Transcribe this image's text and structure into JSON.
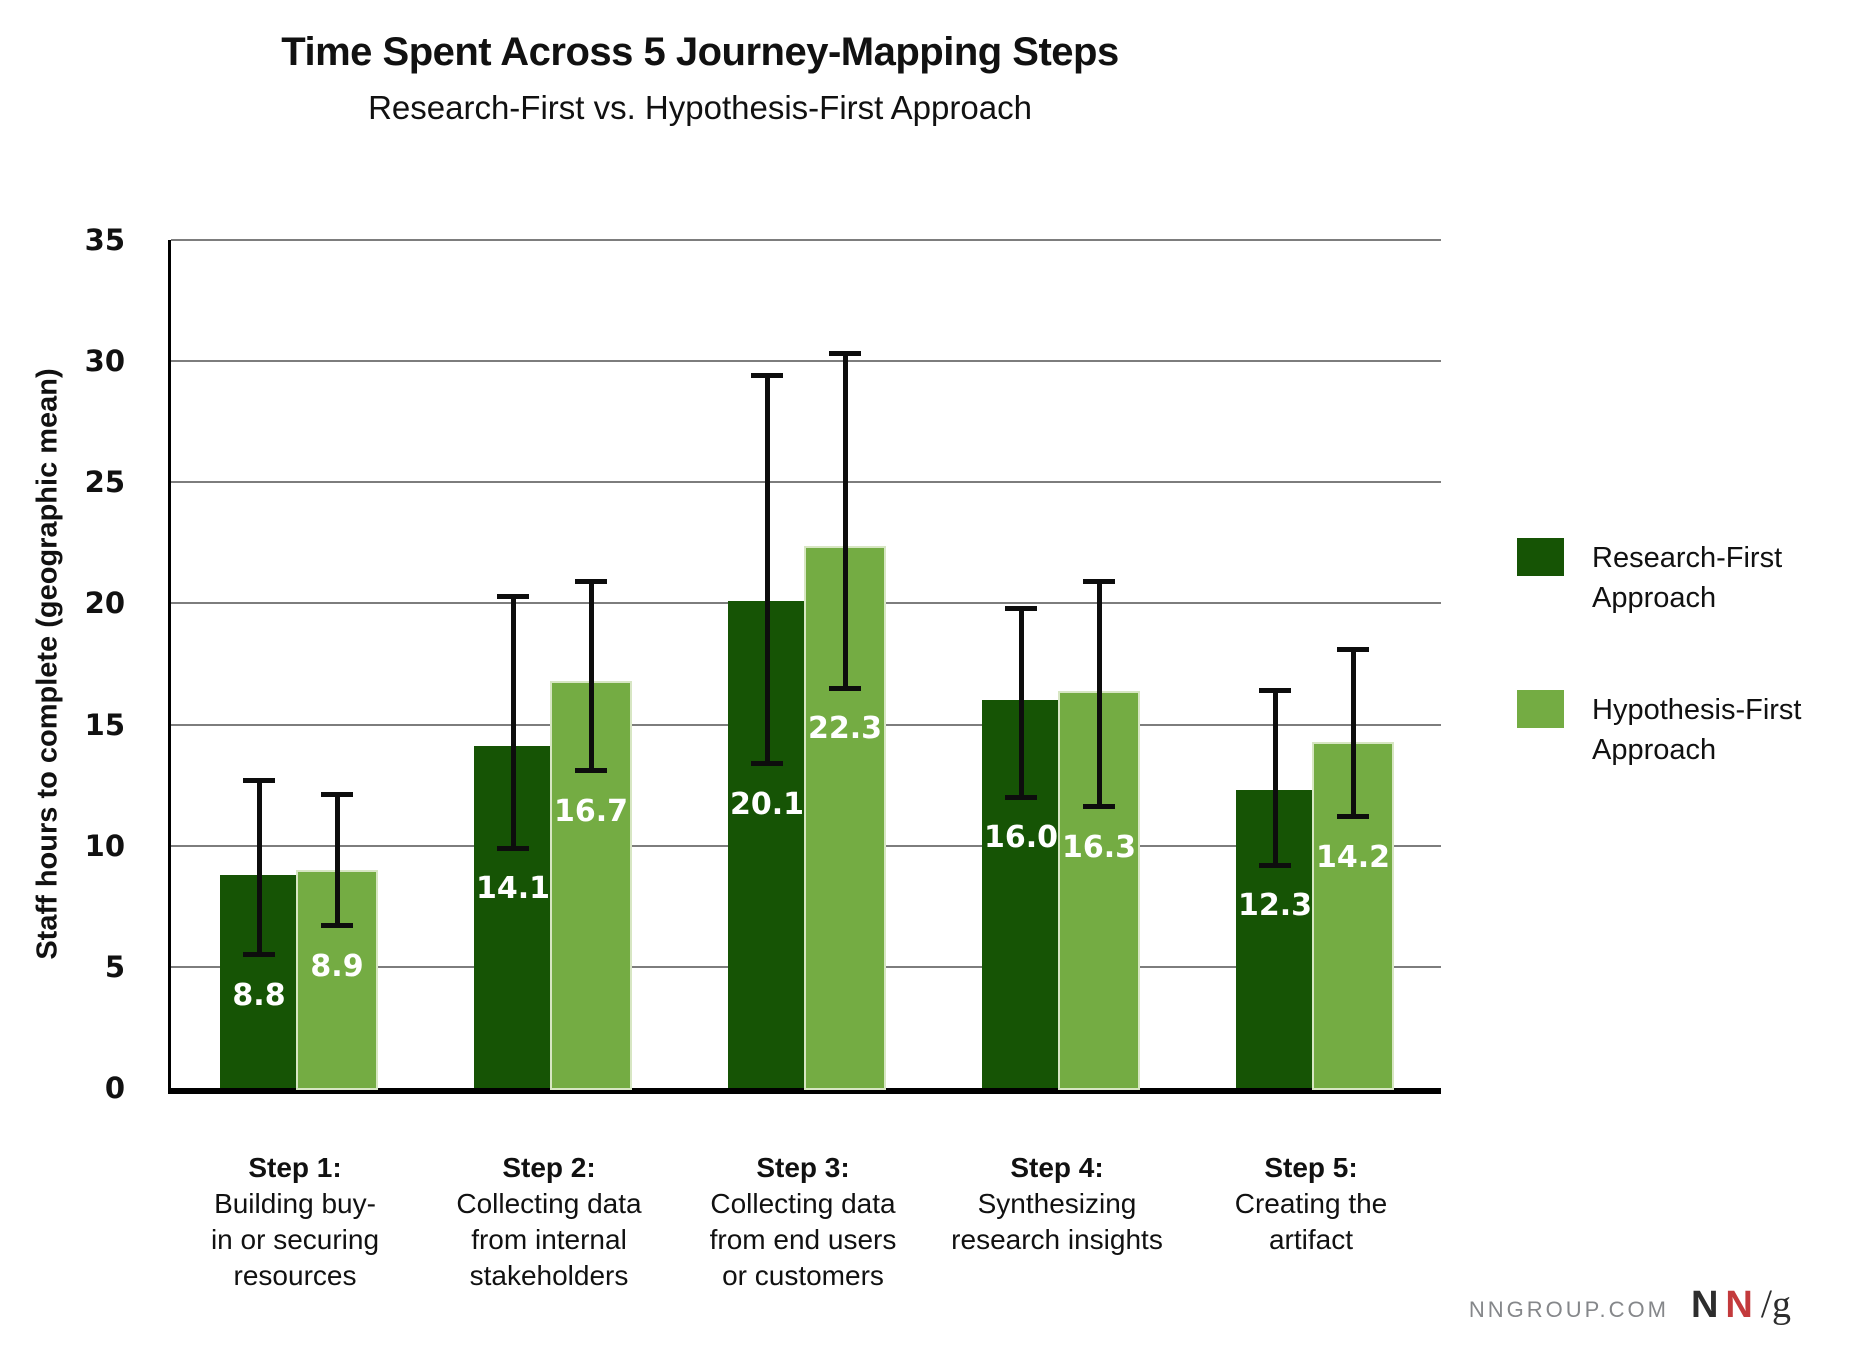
{
  "header": {
    "title": "Time Spent Across 5 Journey-Mapping Steps",
    "subtitle": "Research-First vs. Hypothesis-First Approach"
  },
  "chart_data": {
    "type": "bar",
    "title": "Time Spent Across 5 Journey-Mapping Steps",
    "subtitle": "Research-First vs. Hypothesis-First Approach",
    "ylabel": "Staff hours to complete (geographic mean)",
    "xlabel": "",
    "ylim": [
      0,
      35
    ],
    "ytick_step": 5,
    "grid": true,
    "error_bars": true,
    "legend_position": "right",
    "categories": [
      {
        "title": "Step 1:",
        "lines": [
          "Building buy-",
          "in or securing",
          "resources"
        ]
      },
      {
        "title": "Step 2:",
        "lines": [
          "Collecting data",
          "from internal",
          "stakeholders"
        ]
      },
      {
        "title": "Step 3:",
        "lines": [
          "Collecting data",
          "from end users",
          "or customers"
        ]
      },
      {
        "title": "Step 4:",
        "lines": [
          "Synthesizing",
          "research insights"
        ]
      },
      {
        "title": "Step 5:",
        "lines": [
          "Creating the",
          "artifact"
        ]
      }
    ],
    "series": [
      {
        "name": "Research-First Approach",
        "key": "research-first",
        "color": "#165405",
        "values": [
          8.8,
          14.1,
          20.1,
          16.0,
          12.3
        ],
        "error_low": [
          5.5,
          9.9,
          13.4,
          12.0,
          9.2
        ],
        "error_high": [
          12.7,
          20.3,
          29.4,
          19.8,
          16.4
        ]
      },
      {
        "name": "Hypothesis-First Approach",
        "key": "hypothesis-first",
        "color": "#74AC43",
        "values": [
          8.9,
          16.7,
          22.3,
          16.3,
          14.2
        ],
        "error_low": [
          6.7,
          13.1,
          16.5,
          11.6,
          11.2
        ],
        "error_high": [
          12.1,
          20.9,
          30.3,
          20.9,
          18.1
        ]
      }
    ]
  },
  "legend": {
    "items": [
      {
        "lines": [
          "Research-First",
          "Approach"
        ],
        "color": "#165405"
      },
      {
        "lines": [
          "Hypothesis-First",
          "Approach"
        ],
        "color": "#74AC43"
      }
    ]
  },
  "footer": {
    "site": "NNGROUP.COM",
    "logo": {
      "n1": "N",
      "n2": "N",
      "slash": "/",
      "g": "g"
    },
    "colors": {
      "site_gray": "#85878a",
      "logo_black": "#2d2d2d",
      "logo_red": "#c33a3c"
    }
  }
}
